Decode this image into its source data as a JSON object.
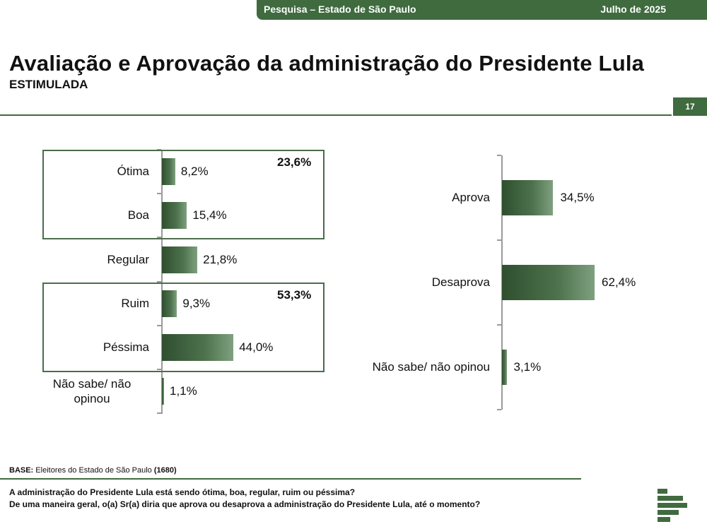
{
  "header": {
    "survey": "Pesquisa – Estado de São Paulo",
    "date": "Julho de 2025"
  },
  "page": {
    "title": "Avaliação e Aprovação da administração do Presidente Lula",
    "subtitle": "ESTIMULADA",
    "page_number": "17"
  },
  "colors": {
    "brand_green": "#3f6b3f",
    "bar_dark": "#2f4f2f",
    "bar_light": "#7fa07f"
  },
  "chart_data": [
    {
      "type": "bar",
      "orientation": "horizontal",
      "categories": [
        "Ótima",
        "Boa",
        "Regular",
        "Ruim",
        "Péssima",
        "Não sabe/ não opinou"
      ],
      "values": [
        8.2,
        15.4,
        21.8,
        9.3,
        44.0,
        1.1
      ],
      "value_labels": [
        "8,2%",
        "15,4%",
        "21,8%",
        "9,3%",
        "44,0%",
        "1,1%"
      ],
      "groups": [
        {
          "label": "23,6%",
          "categories": [
            "Ótima",
            "Boa"
          ],
          "value": 23.6
        },
        {
          "label": "53,3%",
          "categories": [
            "Ruim",
            "Péssima"
          ],
          "value": 53.3
        }
      ],
      "xlim": [
        0,
        100
      ]
    },
    {
      "type": "bar",
      "orientation": "horizontal",
      "categories": [
        "Aprova",
        "Desaprova",
        "Não sabe/ não opinou"
      ],
      "values": [
        34.5,
        62.4,
        3.1
      ],
      "value_labels": [
        "34,5%",
        "62,4%",
        "3,1%"
      ],
      "xlim": [
        0,
        100
      ]
    }
  ],
  "footer": {
    "base_label": "BASE:",
    "base_text": "Eleitores do Estado de São Paulo",
    "base_n": "(1680)",
    "questions": [
      "A administração do Presidente Lula está sendo ótima, boa, regular, ruim ou péssima?",
      "De uma maneira geral, o(a) Sr(a) diria que aprova ou desaprova a administração do Presidente Lula, até o momento?"
    ]
  },
  "logo_icon": "bars-logo-icon"
}
